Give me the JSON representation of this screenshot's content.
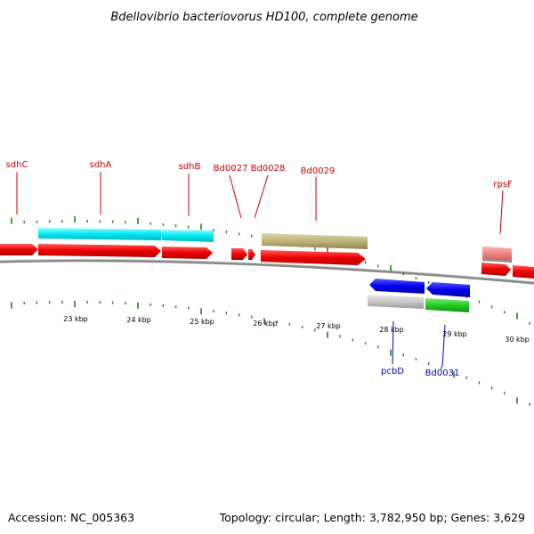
{
  "title": "Bdellovibrio bacteriovorus HD100, complete genome",
  "footer": {
    "accession": "Accession: NC_005363",
    "summary": "Topology: circular; Length: 3,782,950 bp; Genes: 3,629"
  },
  "colors": {
    "forward_label": "#cc0000",
    "reverse_label": "#0000bb",
    "tick": "#2e7d1e",
    "backbone": "#888888"
  },
  "axis_labels": [
    "23 kbp",
    "24 kbp",
    "25 kbp",
    "26 kbp",
    "27 kbp",
    "28 kbp",
    "29 kbp",
    "30 kbp"
  ],
  "forward_gene_labels": [
    "sdhC",
    "sdhA",
    "sdhB",
    "Bd0027",
    "Bd0028",
    "Bd0029",
    "rpsF"
  ],
  "reverse_gene_labels": [
    "pcbD",
    "Bd0031"
  ]
}
